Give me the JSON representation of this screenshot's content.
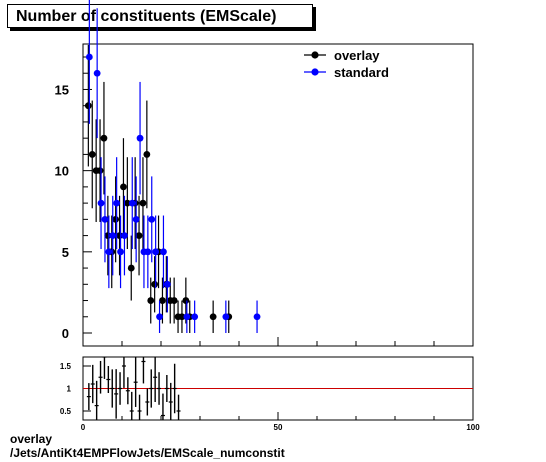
{
  "title": "Number of constituents (EMScale)",
  "footer": {
    "line1": "overlay",
    "line2": "/Jets/AntiKt4EMPFlowJets/EMScale_numconstit"
  },
  "colors": {
    "overlay": "#000000",
    "standard": "#0000ff",
    "ratio_line": "#cc0000"
  },
  "chart_data": [
    {
      "type": "scatter",
      "panel": "main",
      "xlim": [
        0,
        100
      ],
      "ylim": [
        -0.8,
        17.8
      ],
      "yticks": [
        0,
        5,
        10,
        15
      ],
      "ytick_labels": [
        "0",
        "5",
        "10",
        "15"
      ],
      "legend_position": "top-right",
      "series": [
        {
          "name": "overlay",
          "color": "#000000",
          "x": [
            1.5,
            2.5,
            3.5,
            4.5,
            5.5,
            6.5,
            7.5,
            8.5,
            9.5,
            10.5,
            11.5,
            12.5,
            13.5,
            14.5,
            15.5,
            16.5,
            17.5,
            18.5,
            19.5,
            20.5,
            21.5,
            22.5,
            23.5,
            24.5,
            25.5,
            26.5,
            27.5,
            33.5,
            37.5
          ],
          "y": [
            14,
            11,
            10,
            10,
            12,
            6,
            5,
            7,
            6,
            9,
            8,
            4,
            8,
            6,
            8,
            11,
            2,
            3,
            5,
            2,
            3,
            2,
            2,
            1,
            1,
            2,
            1,
            1,
            1
          ]
        },
        {
          "name": "standard",
          "color": "#0000ff",
          "x": [
            1.5,
            3.5,
            4.5,
            5.5,
            6.5,
            7.5,
            8.5,
            9.5,
            10.5,
            12.5,
            13.5,
            14.5,
            15.5,
            16.5,
            17.5,
            18.5,
            19.5,
            20.5,
            21.5,
            26.5,
            28.5,
            36.5,
            44.5
          ],
          "y": [
            17,
            16,
            8,
            7,
            5,
            6,
            8,
            5,
            6,
            8,
            7,
            12,
            5,
            5,
            7,
            5,
            1,
            5,
            3,
            1,
            1,
            1,
            1
          ]
        }
      ]
    },
    {
      "type": "scatter",
      "panel": "ratio",
      "xlim": [
        0,
        100
      ],
      "ylim": [
        0.3,
        1.7
      ],
      "yticks": [
        0.5,
        1,
        1.5
      ],
      "ytick_labels": [
        "0.5",
        "1",
        "1.5"
      ],
      "xticks": [
        0,
        50,
        100
      ],
      "xtick_labels": [
        "0",
        "50",
        "100"
      ],
      "reference_line": 1,
      "points": {
        "x": [
          1.5,
          2.5,
          3.5,
          4.5,
          5.5,
          6.5,
          7.5,
          8.5,
          9.5,
          10.5,
          11.5,
          12.5,
          13.5,
          14.5,
          15.5,
          16.5,
          17.5,
          18.5,
          19.5,
          20.5,
          21.5,
          22.5,
          23.5,
          24.5
        ],
        "y": [
          0.82,
          1.1,
          0.62,
          1.25,
          1.7,
          1.2,
          1.0,
          0.88,
          1.0,
          1.5,
          0.95,
          0.5,
          1.14,
          0.5,
          1.6,
          0.7,
          1.0,
          1.25,
          1.0,
          0.4,
          1.0,
          0.7,
          1.0,
          0.5
        ]
      }
    }
  ]
}
